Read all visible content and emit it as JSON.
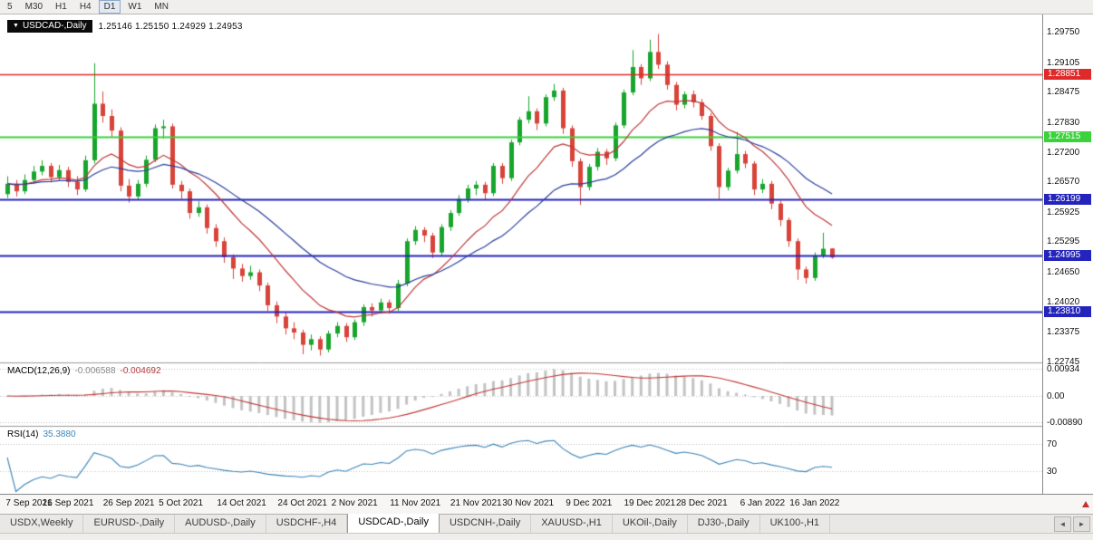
{
  "toolbar": {
    "timeframes": [
      "5",
      "M30",
      "H1",
      "H4",
      "D1",
      "W1",
      "MN"
    ],
    "active_timeframe": "D1"
  },
  "chart_header": {
    "dropdown_icon": "▼",
    "symbol": "USDCAD-,Daily",
    "ohlc_text": "1.25146 1.25150 1.24929 1.24953"
  },
  "price_axis": {
    "ticks": [
      "1.29750",
      "1.29105",
      "1.28475",
      "1.27830",
      "1.27200",
      "1.26570",
      "1.25925",
      "1.25295",
      "1.24650",
      "1.24020",
      "1.23375",
      "1.22745"
    ]
  },
  "indicators": {
    "macd": {
      "name": "MACD(12,26,9)",
      "macd_value": "-0.006588",
      "signal_value": "-0.004692",
      "fast_period": 12,
      "slow_period": 26,
      "signal_period": 9,
      "axis_labels": [
        "0.00934",
        "0.00",
        "-0.00890"
      ],
      "histogram_color": "#c3c3c3",
      "signal_color": "#c03838"
    },
    "rsi": {
      "name": "RSI(14)",
      "value": "35.3880",
      "period": 14,
      "axis_labels": [
        "70",
        "30"
      ],
      "levels": [
        70,
        30
      ],
      "line_color": "#3d85b8"
    }
  },
  "date_axis": {
    "labels": [
      {
        "text": "7 Sep 2021",
        "index": 0
      },
      {
        "text": "16 Sep 2021",
        "index": 7
      },
      {
        "text": "26 Sep 2021",
        "index": 14
      },
      {
        "text": "5 Oct 2021",
        "index": 20
      },
      {
        "text": "14 Oct 2021",
        "index": 27
      },
      {
        "text": "24 Oct 2021",
        "index": 34
      },
      {
        "text": "2 Nov 2021",
        "index": 40
      },
      {
        "text": "11 Nov 2021",
        "index": 47
      },
      {
        "text": "21 Nov 2021",
        "index": 54
      },
      {
        "text": "30 Nov 2021",
        "index": 60
      },
      {
        "text": "9 Dec 2021",
        "index": 67
      },
      {
        "text": "19 Dec 2021",
        "index": 74
      },
      {
        "text": "28 Dec 2021",
        "index": 80
      },
      {
        "text": "6 Jan 2022",
        "index": 87
      },
      {
        "text": "16 Jan 2022",
        "index": 93
      }
    ]
  },
  "tabs": {
    "items": [
      {
        "label": "USDX,Weekly",
        "active": false
      },
      {
        "label": "EURUSD-,Daily",
        "active": false
      },
      {
        "label": "AUDUSD-,Daily",
        "active": false
      },
      {
        "label": "USDCHF-,H4",
        "active": false
      },
      {
        "label": "USDCAD-,Daily",
        "active": true
      },
      {
        "label": "USDCNH-,Daily",
        "active": false
      },
      {
        "label": "XAUUSD-,H1",
        "active": false
      },
      {
        "label": "UKOil-,Daily",
        "active": false
      },
      {
        "label": "DJ30-,Daily",
        "active": false
      },
      {
        "label": "UK100-,H1",
        "active": false
      }
    ],
    "scroll_left_icon": "◄",
    "scroll_right_icon": "►"
  },
  "chart_data": {
    "type": "candlestick",
    "symbol": "USDCAD",
    "timeframe": "Daily",
    "title": "USDCAD-,Daily",
    "price_range": [
      1.22745,
      1.2975
    ],
    "up_color": "#18a52c",
    "down_color": "#d8433a",
    "moving_averages": [
      {
        "type": "EMA",
        "period": 12,
        "color": "#c03838"
      },
      {
        "type": "EMA",
        "period": 26,
        "color": "#2b3f9e"
      }
    ],
    "horizontal_levels": [
      {
        "label": "1.28851",
        "price": 1.28851,
        "color": "#e02a2a",
        "width": 1.7
      },
      {
        "label": "1.27515",
        "price": 1.27515,
        "color": "#3bd23b",
        "width": 2.2
      },
      {
        "label": "1.26199",
        "price": 1.26199,
        "color": "#2424bd",
        "width": 1.8
      },
      {
        "label": "1.24995",
        "price": 1.24995,
        "color": "#2424bd",
        "width": 1.8
      },
      {
        "label": "1.23810",
        "price": 1.2381,
        "color": "#2424bd",
        "width": 1.8
      }
    ],
    "ohlc": [
      [
        1.263,
        1.2668,
        1.2622,
        1.2652
      ],
      [
        1.2652,
        1.266,
        1.2625,
        1.2636
      ],
      [
        1.2636,
        1.2672,
        1.263,
        1.266
      ],
      [
        1.266,
        1.269,
        1.2652,
        1.2678
      ],
      [
        1.2678,
        1.2702,
        1.267,
        1.269
      ],
      [
        1.269,
        1.2696,
        1.2655,
        1.2666
      ],
      [
        1.2666,
        1.2692,
        1.2658,
        1.2681
      ],
      [
        1.2681,
        1.2688,
        1.2645,
        1.2656
      ],
      [
        1.2656,
        1.2668,
        1.2628,
        1.264
      ],
      [
        1.264,
        1.2712,
        1.2635,
        1.2702
      ],
      [
        1.2702,
        1.2908,
        1.2695,
        1.2822
      ],
      [
        1.2822,
        1.2848,
        1.2782,
        1.2796
      ],
      [
        1.2796,
        1.281,
        1.2752,
        1.2765
      ],
      [
        1.2765,
        1.2772,
        1.2636,
        1.2648
      ],
      [
        1.2648,
        1.2662,
        1.2612,
        1.2625
      ],
      [
        1.2625,
        1.266,
        1.2618,
        1.2652
      ],
      [
        1.2652,
        1.2712,
        1.2645,
        1.2703
      ],
      [
        1.2703,
        1.2778,
        1.2698,
        1.277
      ],
      [
        1.277,
        1.2788,
        1.2748,
        1.2774
      ],
      [
        1.2774,
        1.278,
        1.2642,
        1.265
      ],
      [
        1.265,
        1.2658,
        1.262,
        1.2636
      ],
      [
        1.2636,
        1.2642,
        1.2578,
        1.259
      ],
      [
        1.259,
        1.2615,
        1.2582,
        1.2602
      ],
      [
        1.2602,
        1.2608,
        1.2546,
        1.2558
      ],
      [
        1.2558,
        1.2566,
        1.2518,
        1.253
      ],
      [
        1.253,
        1.2538,
        1.2484,
        1.2496
      ],
      [
        1.2496,
        1.2502,
        1.245,
        1.2472
      ],
      [
        1.2472,
        1.2482,
        1.2444,
        1.2456
      ],
      [
        1.2456,
        1.2478,
        1.2448,
        1.2464
      ],
      [
        1.2464,
        1.247,
        1.2424,
        1.2436
      ],
      [
        1.2436,
        1.2442,
        1.2382,
        1.2394
      ],
      [
        1.2394,
        1.2402,
        1.2356,
        1.237
      ],
      [
        1.237,
        1.2378,
        1.2332,
        1.2345
      ],
      [
        1.2345,
        1.2358,
        1.2322,
        1.2336
      ],
      [
        1.2336,
        1.2342,
        1.229,
        1.231
      ],
      [
        1.231,
        1.2332,
        1.2298,
        1.2322
      ],
      [
        1.2322,
        1.2328,
        1.2287,
        1.23
      ],
      [
        1.23,
        1.234,
        1.2294,
        1.2334
      ],
      [
        1.2334,
        1.2358,
        1.2326,
        1.235
      ],
      [
        1.235,
        1.2356,
        1.2316,
        1.2326
      ],
      [
        1.2326,
        1.2364,
        1.232,
        1.2358
      ],
      [
        1.2358,
        1.2396,
        1.235,
        1.239
      ],
      [
        1.239,
        1.2398,
        1.237,
        1.2383
      ],
      [
        1.2383,
        1.2408,
        1.2376,
        1.24
      ],
      [
        1.24,
        1.2406,
        1.2376,
        1.2388
      ],
      [
        1.2388,
        1.2448,
        1.2382,
        1.244
      ],
      [
        1.244,
        1.2536,
        1.2434,
        1.253
      ],
      [
        1.253,
        1.2562,
        1.2522,
        1.2554
      ],
      [
        1.2554,
        1.256,
        1.2528,
        1.2542
      ],
      [
        1.2542,
        1.2548,
        1.2494,
        1.2506
      ],
      [
        1.2506,
        1.2566,
        1.25,
        1.256
      ],
      [
        1.256,
        1.2596,
        1.2552,
        1.259
      ],
      [
        1.259,
        1.2628,
        1.2584,
        1.262
      ],
      [
        1.262,
        1.265,
        1.2612,
        1.2642
      ],
      [
        1.2642,
        1.2658,
        1.2628,
        1.265
      ],
      [
        1.265,
        1.2656,
        1.2618,
        1.2632
      ],
      [
        1.2632,
        1.2696,
        1.2626,
        1.269
      ],
      [
        1.269,
        1.2696,
        1.2652,
        1.2664
      ],
      [
        1.2664,
        1.2746,
        1.2658,
        1.274
      ],
      [
        1.274,
        1.2794,
        1.2734,
        1.2788
      ],
      [
        1.2788,
        1.2838,
        1.278,
        1.2806
      ],
      [
        1.2806,
        1.2812,
        1.2766,
        1.278
      ],
      [
        1.278,
        1.2842,
        1.2774,
        1.2836
      ],
      [
        1.2836,
        1.2864,
        1.2828,
        1.285
      ],
      [
        1.285,
        1.2856,
        1.2758,
        1.277
      ],
      [
        1.277,
        1.2776,
        1.2688,
        1.27
      ],
      [
        1.27,
        1.2706,
        1.2607,
        1.2645
      ],
      [
        1.2645,
        1.2694,
        1.2638,
        1.2688
      ],
      [
        1.2688,
        1.2728,
        1.268,
        1.272
      ],
      [
        1.272,
        1.2726,
        1.2692,
        1.2706
      ],
      [
        1.2706,
        1.2782,
        1.27,
        1.2776
      ],
      [
        1.2776,
        1.2852,
        1.277,
        1.2846
      ],
      [
        1.2846,
        1.2936,
        1.284,
        1.29
      ],
      [
        1.29,
        1.2906,
        1.2862,
        1.2876
      ],
      [
        1.2876,
        1.2958,
        1.287,
        1.2932
      ],
      [
        1.2932,
        1.297,
        1.2896,
        1.2905
      ],
      [
        1.2905,
        1.2912,
        1.2852,
        1.2862
      ],
      [
        1.2862,
        1.2868,
        1.2808,
        1.282
      ],
      [
        1.282,
        1.2848,
        1.2812,
        1.2842
      ],
      [
        1.2842,
        1.285,
        1.2814,
        1.2825
      ],
      [
        1.2825,
        1.2832,
        1.2788,
        1.2796
      ],
      [
        1.2796,
        1.2802,
        1.2722,
        1.2732
      ],
      [
        1.2732,
        1.2738,
        1.262,
        1.2645
      ],
      [
        1.2645,
        1.2686,
        1.2638,
        1.268
      ],
      [
        1.268,
        1.2762,
        1.2674,
        1.2715
      ],
      [
        1.2715,
        1.2722,
        1.2685,
        1.2695
      ],
      [
        1.2695,
        1.27,
        1.2628,
        1.264
      ],
      [
        1.264,
        1.2662,
        1.2632,
        1.2652
      ],
      [
        1.2652,
        1.2658,
        1.2598,
        1.261
      ],
      [
        1.261,
        1.2616,
        1.2562,
        1.2575
      ],
      [
        1.2575,
        1.258,
        1.2518,
        1.253
      ],
      [
        1.253,
        1.2536,
        1.2448,
        1.247
      ],
      [
        1.247,
        1.2476,
        1.244,
        1.2452
      ],
      [
        1.2452,
        1.2506,
        1.2446,
        1.25
      ],
      [
        1.25,
        1.2548,
        1.2494,
        1.2514
      ],
      [
        1.25146,
        1.2515,
        1.24929,
        1.24953
      ]
    ]
  }
}
